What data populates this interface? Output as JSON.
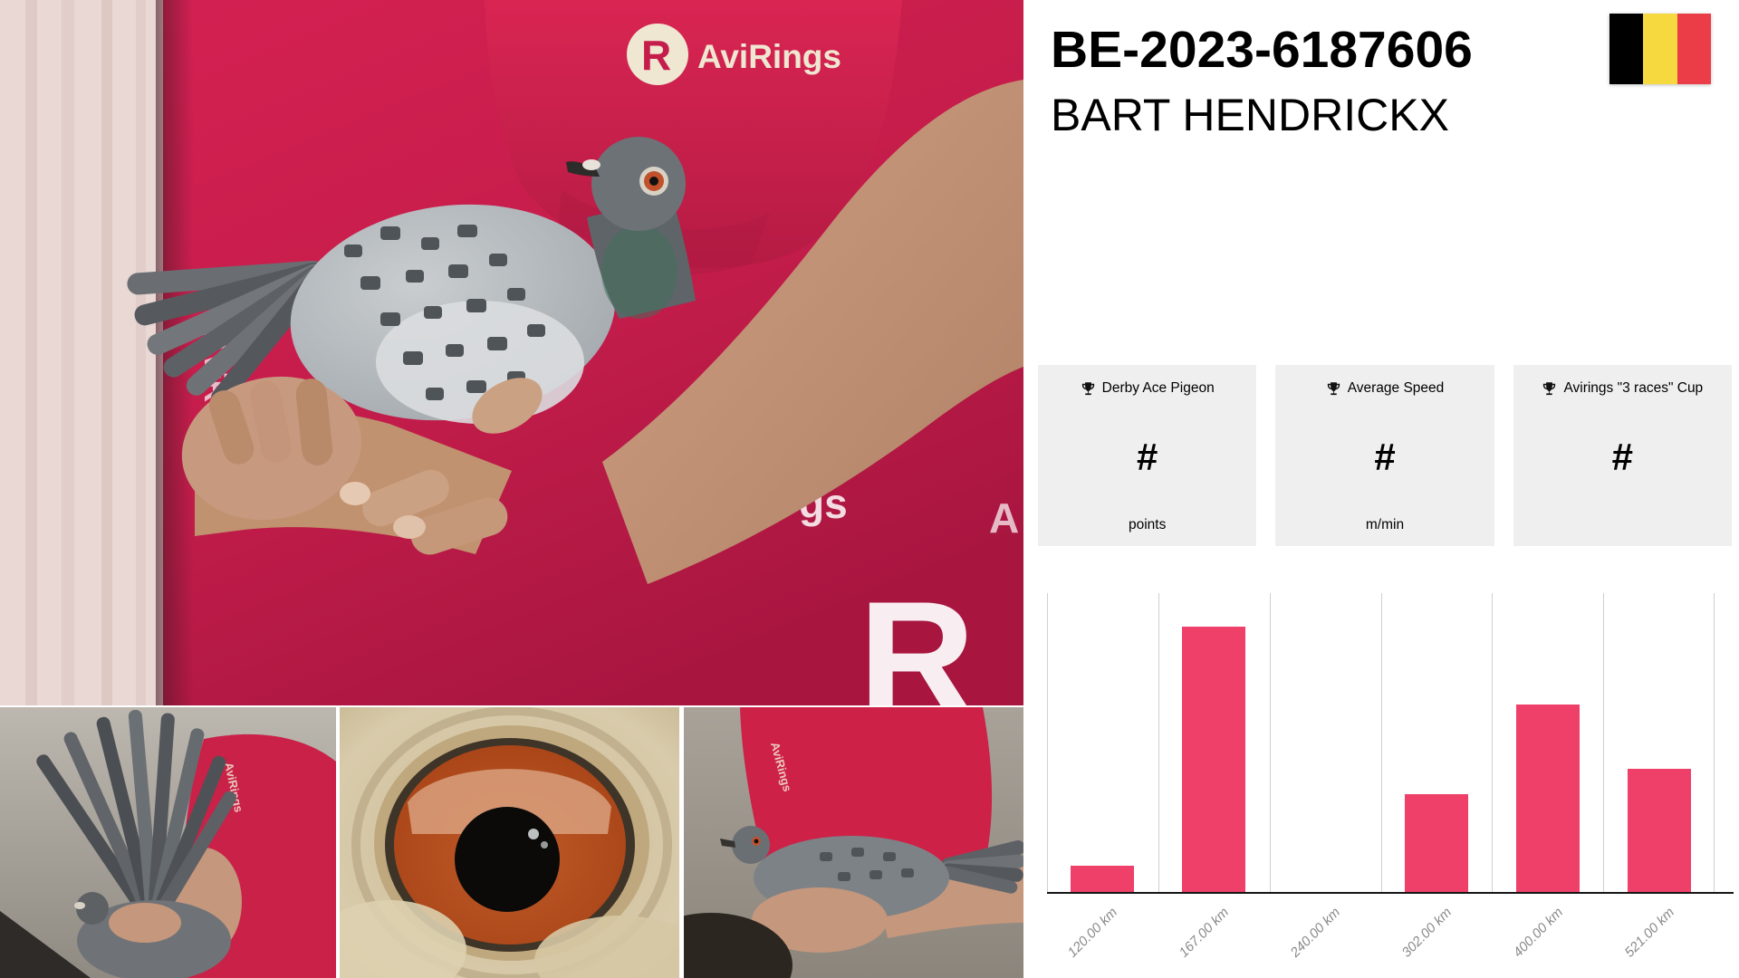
{
  "header": {
    "ring_number": "BE-2023-6187606",
    "owner_name": "BART HENDRICKX",
    "flag_name": "belgium-flag"
  },
  "stat_cards": [
    {
      "icon": "trophy-icon",
      "label": "Derby Ace Pigeon",
      "value": "#",
      "unit": "points"
    },
    {
      "icon": "trophy-icon",
      "label": "Average Speed",
      "value": "#",
      "unit": "m/min"
    },
    {
      "icon": "trophy-icon",
      "label": "Avirings \"3 races\" Cup",
      "value": "#",
      "unit": ""
    }
  ],
  "chart_data": {
    "type": "bar",
    "categories": [
      "120.00 km",
      "167.00 km",
      "240.00 km",
      "302.00 km",
      "400.00 km",
      "521.00 km"
    ],
    "values": [
      8.8,
      88.8,
      0,
      32.7,
      62.7,
      41.2
    ],
    "title": "",
    "xlabel": "",
    "ylabel": "",
    "ylim": [
      0,
      100
    ],
    "y_axis_labels_visible": false,
    "grid": "vertical-only",
    "legend": "none",
    "bar_color": "#EE4069",
    "note": "No numeric y-axis is shown in the source; values are bar heights as percent of the plot height (one bar per race distance, no bar at 240.00 km)."
  },
  "photos": {
    "main": {
      "name": "pigeon-held-portrait",
      "shirt_logo_text": "AviRings",
      "watermark_vertical": "AviR",
      "watermark_mid": "AviRin",
      "watermark_gs": "gs",
      "watermark_r": "R",
      "watermark_a": "A"
    },
    "thumb1": {
      "name": "pigeon-wing-spread",
      "shirt_logo_text": "AviRings"
    },
    "thumb2": {
      "name": "pigeon-eye-closeup"
    },
    "thumb3": {
      "name": "pigeon-held-side",
      "shirt_logo_text": "AviRings"
    }
  },
  "colors": {
    "accent_pink": "#EE4069",
    "backdrop_crimson": "#C51D4B",
    "card_bg": "#EFEFEF",
    "flag_black": "#000000",
    "flag_yellow": "#F6D93F",
    "flag_red": "#EA3D47"
  }
}
